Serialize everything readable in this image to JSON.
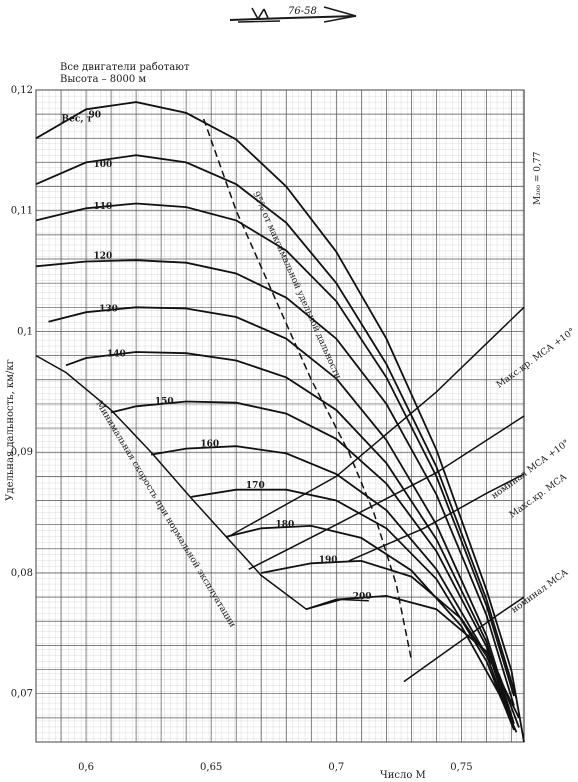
{
  "header": {
    "line1": "Все двигатели работают",
    "line2": "Высота – 8000 м",
    "stamp_text": "76-58"
  },
  "chart_data": {
    "type": "line",
    "title": "",
    "xlabel": "Число М",
    "ylabel": "Удельная дальность, км/кг",
    "xlim": [
      0.58,
      0.775
    ],
    "ylim": [
      0.066,
      0.12
    ],
    "x_ticks": [
      {
        "value": 0.6,
        "label": "0,6"
      },
      {
        "value": 0.65,
        "label": "0,65"
      },
      {
        "value": 0.7,
        "label": "0,7"
      },
      {
        "value": 0.75,
        "label": "0,75"
      }
    ],
    "y_ticks": [
      {
        "value": 0.07,
        "label": "0,07"
      },
      {
        "value": 0.08,
        "label": "0,08"
      },
      {
        "value": 0.09,
        "label": "0,09"
      },
      {
        "value": 0.1,
        "label": "0,1"
      },
      {
        "value": 0.11,
        "label": "0,11"
      },
      {
        "value": 0.12,
        "label": "0,12"
      }
    ],
    "grid": true,
    "weight_label_prefix": "Вес, т",
    "series": [
      {
        "name": "90",
        "points": [
          [
            0.58,
            0.116
          ],
          [
            0.6,
            0.1184
          ],
          [
            0.62,
            0.119
          ],
          [
            0.64,
            0.1181
          ],
          [
            0.66,
            0.1159
          ],
          [
            0.68,
            0.112
          ],
          [
            0.7,
            0.1066
          ],
          [
            0.72,
            0.0994
          ],
          [
            0.74,
            0.0902
          ],
          [
            0.76,
            0.0786
          ],
          [
            0.77,
            0.0719
          ],
          [
            0.775,
            0.066
          ]
        ]
      },
      {
        "name": "100",
        "points": [
          [
            0.58,
            0.1122
          ],
          [
            0.6,
            0.114
          ],
          [
            0.62,
            0.1146
          ],
          [
            0.64,
            0.114
          ],
          [
            0.66,
            0.1122
          ],
          [
            0.68,
            0.109
          ],
          [
            0.7,
            0.104
          ],
          [
            0.72,
            0.0973
          ],
          [
            0.74,
            0.0888
          ],
          [
            0.76,
            0.0778
          ],
          [
            0.772,
            0.0696
          ]
        ]
      },
      {
        "name": "110",
        "points": [
          [
            0.58,
            0.1092
          ],
          [
            0.6,
            0.1102
          ],
          [
            0.62,
            0.1106
          ],
          [
            0.64,
            0.1103
          ],
          [
            0.66,
            0.1092
          ],
          [
            0.68,
            0.1067
          ],
          [
            0.7,
            0.1025
          ],
          [
            0.72,
            0.0962
          ],
          [
            0.74,
            0.088
          ],
          [
            0.76,
            0.0773
          ],
          [
            0.771,
            0.0698
          ]
        ]
      },
      {
        "name": "120",
        "points": [
          [
            0.58,
            0.1054
          ],
          [
            0.6,
            0.1058
          ],
          [
            0.62,
            0.1059
          ],
          [
            0.64,
            0.1057
          ],
          [
            0.66,
            0.1048
          ],
          [
            0.68,
            0.1028
          ],
          [
            0.7,
            0.0994
          ],
          [
            0.72,
            0.094
          ],
          [
            0.74,
            0.0865
          ],
          [
            0.76,
            0.0765
          ],
          [
            0.771,
            0.069
          ]
        ]
      },
      {
        "name": "130",
        "points": [
          [
            0.585,
            0.1008
          ],
          [
            0.6,
            0.1016
          ],
          [
            0.62,
            0.102
          ],
          [
            0.64,
            0.1019
          ],
          [
            0.66,
            0.1012
          ],
          [
            0.68,
            0.0994
          ],
          [
            0.7,
            0.0961
          ],
          [
            0.72,
            0.091
          ],
          [
            0.74,
            0.084
          ],
          [
            0.76,
            0.0748
          ],
          [
            0.771,
            0.0675
          ]
        ]
      },
      {
        "name": "140",
        "points": [
          [
            0.592,
            0.0972
          ],
          [
            0.6,
            0.0978
          ],
          [
            0.62,
            0.0983
          ],
          [
            0.64,
            0.0982
          ],
          [
            0.66,
            0.0976
          ],
          [
            0.68,
            0.0962
          ],
          [
            0.7,
            0.0935
          ],
          [
            0.72,
            0.0891
          ],
          [
            0.74,
            0.0828
          ],
          [
            0.76,
            0.0743
          ],
          [
            0.771,
            0.0672
          ]
        ]
      },
      {
        "name": "150",
        "points": [
          [
            0.61,
            0.0933
          ],
          [
            0.62,
            0.0938
          ],
          [
            0.64,
            0.0942
          ],
          [
            0.66,
            0.0941
          ],
          [
            0.68,
            0.0932
          ],
          [
            0.7,
            0.0911
          ],
          [
            0.72,
            0.0874
          ],
          [
            0.74,
            0.0818
          ],
          [
            0.76,
            0.0739
          ],
          [
            0.771,
            0.067
          ]
        ]
      },
      {
        "name": "160",
        "points": [
          [
            0.626,
            0.0898
          ],
          [
            0.64,
            0.0903
          ],
          [
            0.66,
            0.0905
          ],
          [
            0.68,
            0.0899
          ],
          [
            0.7,
            0.0882
          ],
          [
            0.72,
            0.0852
          ],
          [
            0.74,
            0.0803
          ],
          [
            0.76,
            0.0732
          ],
          [
            0.771,
            0.067
          ]
        ]
      },
      {
        "name": "170",
        "points": [
          [
            0.642,
            0.0863
          ],
          [
            0.66,
            0.0869
          ],
          [
            0.68,
            0.0869
          ],
          [
            0.7,
            0.086
          ],
          [
            0.72,
            0.0837
          ],
          [
            0.74,
            0.0795
          ],
          [
            0.76,
            0.0727
          ],
          [
            0.771,
            0.067
          ]
        ]
      },
      {
        "name": "180",
        "points": [
          [
            0.656,
            0.083
          ],
          [
            0.67,
            0.0837
          ],
          [
            0.69,
            0.0839
          ],
          [
            0.71,
            0.0829
          ],
          [
            0.73,
            0.0802
          ],
          [
            0.75,
            0.0756
          ],
          [
            0.765,
            0.07
          ],
          [
            0.772,
            0.0668
          ]
        ]
      },
      {
        "name": "190",
        "points": [
          [
            0.67,
            0.08
          ],
          [
            0.69,
            0.0808
          ],
          [
            0.71,
            0.081
          ],
          [
            0.73,
            0.0797
          ],
          [
            0.75,
            0.0762
          ],
          [
            0.765,
            0.0716
          ],
          [
            0.773,
            0.0672
          ]
        ]
      },
      {
        "name": "200",
        "points": [
          [
            0.688,
            0.077
          ],
          [
            0.7,
            0.0778
          ],
          [
            0.72,
            0.0781
          ],
          [
            0.74,
            0.077
          ],
          [
            0.76,
            0.0735
          ],
          [
            0.773,
            0.068
          ]
        ]
      }
    ],
    "boundaries": [
      {
        "name": "95% от максимальной удельной дальности",
        "style": "dashed",
        "points": [
          [
            0.647,
            0.1176
          ],
          [
            0.66,
            0.11
          ],
          [
            0.675,
            0.103
          ],
          [
            0.69,
            0.096
          ],
          [
            0.705,
            0.09
          ],
          [
            0.715,
            0.085
          ],
          [
            0.724,
            0.079
          ],
          [
            0.73,
            0.0728
          ]
        ]
      },
      {
        "name": "Минимальная скорость при нормальной эксплуатации",
        "style": "solid",
        "points": [
          [
            0.58,
            0.098
          ],
          [
            0.592,
            0.0966
          ],
          [
            0.61,
            0.0935
          ],
          [
            0.626,
            0.09
          ],
          [
            0.642,
            0.0862
          ],
          [
            0.656,
            0.083
          ],
          [
            0.67,
            0.0798
          ],
          [
            0.688,
            0.077
          ],
          [
            0.702,
            0.0778
          ],
          [
            0.713,
            0.0777
          ]
        ]
      },
      {
        "name": "Макс.кр. МСА +10°",
        "style": "solid",
        "points": [
          [
            0.656,
            0.0829
          ],
          [
            0.7,
            0.088
          ],
          [
            0.74,
            0.095
          ],
          [
            0.775,
            0.102
          ]
        ]
      },
      {
        "name": "номинал МСА +10°",
        "style": "solid",
        "points": [
          [
            0.665,
            0.0803
          ],
          [
            0.7,
            0.084
          ],
          [
            0.74,
            0.0883
          ],
          [
            0.775,
            0.093
          ]
        ]
      },
      {
        "name": "Макс.кр. МСА",
        "style": "solid",
        "points": [
          [
            0.705,
            0.081
          ],
          [
            0.735,
            0.0837
          ],
          [
            0.76,
            0.0866
          ],
          [
            0.775,
            0.0882
          ]
        ]
      },
      {
        "name": "номинал МСА",
        "style": "solid",
        "points": [
          [
            0.727,
            0.071
          ],
          [
            0.75,
            0.0744
          ],
          [
            0.765,
            0.0766
          ],
          [
            0.775,
            0.078
          ]
        ]
      }
    ],
    "annotations": {
      "m_limit": "M₂₀₀ = 0,77",
      "line_95": "95% от максимальной удельной дальности",
      "min_speed": "Минимальная скорость при нормальной эксплуатации",
      "max_cr_isa10": "Макс.кр. МСА +10°",
      "nom_isa10": "номинал МСА +10°",
      "max_cr_isa": "Макс.кр. МСА",
      "nom_isa": "номинал МСА"
    }
  }
}
